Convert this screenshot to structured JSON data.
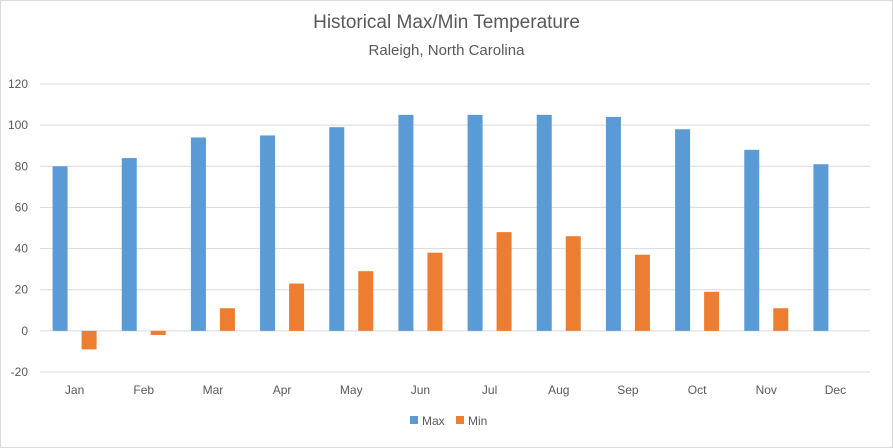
{
  "chart_data": {
    "type": "bar",
    "title": "Historical Max/Min Temperature",
    "subtitle": "Raleigh, North Carolina",
    "xlabel": "",
    "ylabel": "",
    "categories": [
      "Jan",
      "Feb",
      "Mar",
      "Apr",
      "May",
      "Jun",
      "Jul",
      "Aug",
      "Sep",
      "Oct",
      "Nov",
      "Dec"
    ],
    "series": [
      {
        "name": "Max",
        "color": "#5b9bd5",
        "values": [
          80,
          84,
          94,
          95,
          99,
          105,
          105,
          105,
          104,
          98,
          88,
          81
        ]
      },
      {
        "name": "Min",
        "color": "#ed7d31",
        "values": [
          -9,
          -2,
          11,
          23,
          29,
          38,
          48,
          46,
          37,
          19,
          11,
          0
        ]
      }
    ],
    "ylim": [
      -20,
      120
    ],
    "yticks": [
      "-20",
      "0",
      "20",
      "40",
      "60",
      "80",
      "100",
      "120"
    ],
    "grid": true,
    "legend": "bottom"
  }
}
